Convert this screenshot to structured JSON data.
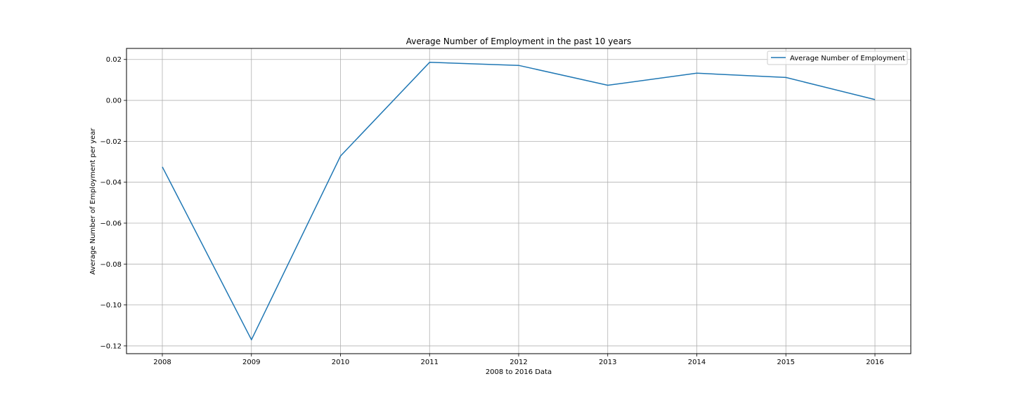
{
  "chart_data": {
    "type": "line",
    "title": "Average Number of Employment in the past 10 years",
    "xlabel": "2008 to 2016 Data",
    "ylabel": "Average Number of Employment per year",
    "categories": [
      "2008",
      "2009",
      "2010",
      "2011",
      "2012",
      "2013",
      "2014",
      "2015",
      "2016"
    ],
    "series": [
      {
        "name": "Average Number of Employment",
        "values": [
          -0.0325,
          -0.117,
          -0.0272,
          0.0186,
          0.0171,
          0.0074,
          0.0133,
          0.0112,
          0.0004
        ]
      }
    ],
    "ylim": [
      -0.1238,
      0.0254
    ],
    "yticks": [
      0.02,
      0.0,
      -0.02,
      -0.04,
      -0.06,
      -0.08,
      -0.1,
      -0.12
    ],
    "ytick_labels": [
      "0.02",
      "0.00",
      "−0.02",
      "−0.04",
      "−0.06",
      "−0.08",
      "−0.10",
      "−0.12"
    ],
    "grid": true,
    "legend_position": "top-right",
    "colors": {
      "series": "#1f77b4",
      "grid": "#b0b0b0",
      "axes": "#000000"
    }
  }
}
